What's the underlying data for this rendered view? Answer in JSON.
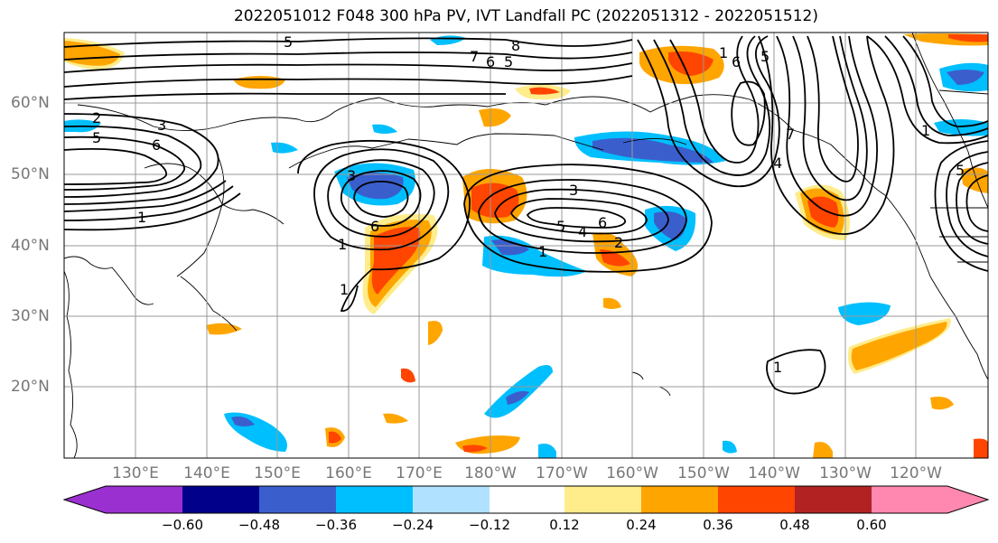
{
  "title": "2022051012 F048 300 hPa PV, IVT Landfall PC (2022051312 - 2022051512)",
  "lat_labels": [
    "60°N",
    "50°N",
    "40°N",
    "30°N",
    "20°N"
  ],
  "lon_labels": [
    "130°E",
    "140°E",
    "150°E",
    "160°E",
    "170°E",
    "180°W",
    "170°W",
    "160°W",
    "150°W",
    "140°W",
    "130°W",
    "120°W"
  ],
  "colorbar": {
    "ticks": [
      "−0.60",
      "−0.48",
      "−0.36",
      "−0.24",
      "−0.12",
      "0.12",
      "0.24",
      "0.36",
      "0.48",
      "0.60"
    ],
    "colors": [
      "#9b30d0",
      "#00008b",
      "#3a5fcd",
      "#00bfff",
      "#b0e2ff",
      "#ffffff",
      "#ffec8b",
      "#ffa500",
      "#ff4500",
      "#b22222",
      "#ff88b0"
    ]
  },
  "contour_labels": [
    "5",
    "8",
    "7",
    "6",
    "5",
    "2",
    "3",
    "5",
    "6",
    "1",
    "3",
    "6",
    "1",
    "1",
    "3",
    "5",
    "4",
    "6",
    "2",
    "1",
    "5",
    "6",
    "1",
    "7",
    "4",
    "5",
    "1",
    "1"
  ],
  "colors": {
    "pos_light": "#ffec8b",
    "pos_mid": "#ffa500",
    "pos_strong": "#ff4500",
    "neg_light": "#b0e2ff",
    "neg_mid": "#00bfff",
    "neg_strong": "#3a5fcd",
    "neg_deep": "#00008b",
    "grid": "#999999"
  }
}
